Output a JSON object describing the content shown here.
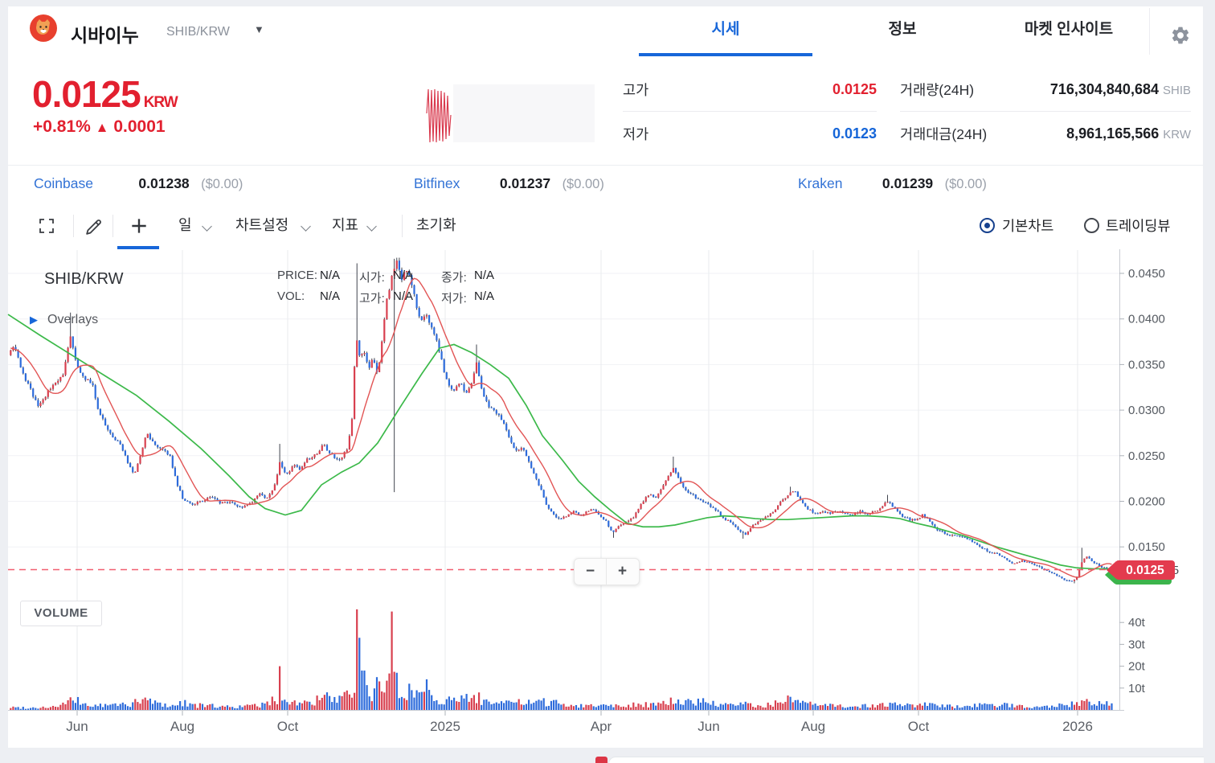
{
  "header": {
    "coin_name": "시바이누",
    "pair": "SHIB/KRW",
    "tabs": [
      {
        "label": "시세"
      },
      {
        "label": "정보"
      },
      {
        "label": "마켓 인사이트"
      }
    ]
  },
  "price_panel": {
    "price": "0.0125",
    "currency": "KRW",
    "change": "+0.81%",
    "arrow": "▲",
    "change_value": "0.0001",
    "high_label": "고가",
    "high": "0.0125",
    "low_label": "저가",
    "low": "0.0123",
    "volume_label": "거래량(24H)",
    "volume": "716,304,840,684",
    "volume_unit": "SHIB",
    "turnover_label": "거래대금(24H)",
    "turnover": "8,961,165,566",
    "turnover_unit": "KRW"
  },
  "exchanges": [
    {
      "name": "Coinbase",
      "price": "0.01238",
      "usd": "($0.00)"
    },
    {
      "name": "Bitfinex",
      "price": "0.01237",
      "usd": "($0.00)"
    },
    {
      "name": "Kraken",
      "price": "0.01239",
      "usd": "($0.00)"
    }
  ],
  "toolbar": {
    "interval": "일",
    "chart_settings": "차트설정",
    "indicators": "지표",
    "reset": "초기화",
    "radio_basic": "기본차트",
    "radio_tv": "트레이딩뷰"
  },
  "chart_labels": {
    "symbol": "SHIB/KRW",
    "overlays": "Overlays",
    "volume": "VOLUME",
    "price_label": "PRICE:",
    "price": "N/A",
    "open_label": "시가:",
    "open": "N/A",
    "close_label": "종가:",
    "close": "N/A",
    "vol_label": "VOL:",
    "vol": "N/A",
    "high_label": "고가:",
    "high": "N/A",
    "low_label": "저가:",
    "low": "N/A",
    "zoom_out": "−",
    "zoom_in": "+"
  },
  "chart_data": {
    "type": "candlestick",
    "pair": "SHIB/KRW",
    "interval": "일(daily)",
    "current_price": 0.0125,
    "price_tag": "0.0125",
    "axis_overlap_label": "0.01255",
    "y_ticks": [
      "0.0450",
      "0.0400",
      "0.0350",
      "0.0300",
      "0.0250",
      "0.0200",
      "0.0150"
    ],
    "y_tick_values": [
      0.045,
      0.04,
      0.035,
      0.03,
      0.025,
      0.02,
      0.015
    ],
    "volume_ticks": [
      {
        "label": "40t",
        "v": 40
      },
      {
        "label": "30t",
        "v": 30
      },
      {
        "label": "20t",
        "v": 20
      },
      {
        "label": "10t",
        "v": 10
      }
    ],
    "x_labels": [
      {
        "label": "Jun",
        "x": 96
      },
      {
        "label": "Aug",
        "x": 227
      },
      {
        "label": "Oct",
        "x": 358
      },
      {
        "label": "2025",
        "x": 554
      },
      {
        "label": "Apr",
        "x": 748
      },
      {
        "label": "Jun",
        "x": 882
      },
      {
        "label": "Aug",
        "x": 1012
      },
      {
        "label": "Oct",
        "x": 1143
      },
      {
        "label": "2026",
        "x": 1341
      }
    ],
    "colors": {
      "up": "#d8404f",
      "down": "#2d6bdb",
      "wick": "#2b2f3a",
      "ma_short": "#e25555",
      "ma_long": "#3cb94a",
      "dashed": "#f15f71",
      "tag": "#e33b4e",
      "tag_green": "#3cb44c",
      "grid_v": "#e9ebee",
      "grid_h": "#f1f2f5",
      "axis": "#c9cdd3",
      "tick": "#aeb3ba",
      "axis_text": "#555a61"
    },
    "price_path": [
      [
        -150,
        0.047
      ],
      [
        -100,
        0.0445
      ],
      [
        -60,
        0.0415
      ],
      [
        -25,
        0.038
      ],
      [
        10,
        0.036
      ],
      [
        18,
        0.0372
      ],
      [
        28,
        0.034
      ],
      [
        38,
        0.0322
      ],
      [
        48,
        0.0305
      ],
      [
        58,
        0.0318
      ],
      [
        68,
        0.033
      ],
      [
        78,
        0.0338
      ],
      [
        88,
        0.0382
      ],
      [
        95,
        0.035
      ],
      [
        105,
        0.0335
      ],
      [
        115,
        0.0328
      ],
      [
        122,
        0.03
      ],
      [
        130,
        0.0285
      ],
      [
        140,
        0.0272
      ],
      [
        150,
        0.0262
      ],
      [
        160,
        0.024
      ],
      [
        167,
        0.0228
      ],
      [
        175,
        0.0252
      ],
      [
        183,
        0.0275
      ],
      [
        192,
        0.0262
      ],
      [
        202,
        0.0258
      ],
      [
        212,
        0.0248
      ],
      [
        220,
        0.022
      ],
      [
        228,
        0.0202
      ],
      [
        238,
        0.0196
      ],
      [
        250,
        0.02
      ],
      [
        262,
        0.0205
      ],
      [
        275,
        0.0198
      ],
      [
        288,
        0.0198
      ],
      [
        300,
        0.0193
      ],
      [
        312,
        0.0198
      ],
      [
        322,
        0.0208
      ],
      [
        332,
        0.0202
      ],
      [
        342,
        0.0218
      ],
      [
        348,
        0.0242
      ],
      [
        356,
        0.0228
      ],
      [
        365,
        0.024
      ],
      [
        373,
        0.0234
      ],
      [
        382,
        0.0246
      ],
      [
        392,
        0.025
      ],
      [
        402,
        0.0262
      ],
      [
        412,
        0.0252
      ],
      [
        422,
        0.0244
      ],
      [
        432,
        0.0258
      ],
      [
        438,
        0.029
      ],
      [
        443,
        0.0385
      ],
      [
        448,
        0.0358
      ],
      [
        454,
        0.0365
      ],
      [
        459,
        0.0345
      ],
      [
        464,
        0.0358
      ],
      [
        470,
        0.034
      ],
      [
        476,
        0.038
      ],
      [
        482,
        0.0425
      ],
      [
        488,
        0.0448
      ],
      [
        494,
        0.0462
      ],
      [
        500,
        0.0445
      ],
      [
        505,
        0.0458
      ],
      [
        511,
        0.0442
      ],
      [
        517,
        0.042
      ],
      [
        523,
        0.0398
      ],
      [
        530,
        0.0405
      ],
      [
        537,
        0.0392
      ],
      [
        543,
        0.0378
      ],
      [
        550,
        0.0352
      ],
      [
        557,
        0.033
      ],
      [
        564,
        0.0322
      ],
      [
        572,
        0.033
      ],
      [
        580,
        0.0318
      ],
      [
        587,
        0.0328
      ],
      [
        593,
        0.0352
      ],
      [
        600,
        0.032
      ],
      [
        608,
        0.0305
      ],
      [
        617,
        0.0298
      ],
      [
        626,
        0.0288
      ],
      [
        634,
        0.0268
      ],
      [
        642,
        0.0255
      ],
      [
        650,
        0.0258
      ],
      [
        658,
        0.0244
      ],
      [
        666,
        0.0228
      ],
      [
        673,
        0.0213
      ],
      [
        680,
        0.0195
      ],
      [
        688,
        0.0186
      ],
      [
        697,
        0.018
      ],
      [
        706,
        0.0184
      ],
      [
        714,
        0.019
      ],
      [
        722,
        0.0184
      ],
      [
        730,
        0.0188
      ],
      [
        738,
        0.0192
      ],
      [
        746,
        0.0184
      ],
      [
        754,
        0.0178
      ],
      [
        762,
        0.0166
      ],
      [
        770,
        0.0172
      ],
      [
        779,
        0.0178
      ],
      [
        788,
        0.0182
      ],
      [
        797,
        0.0196
      ],
      [
        806,
        0.0208
      ],
      [
        815,
        0.0204
      ],
      [
        824,
        0.0214
      ],
      [
        832,
        0.0228
      ],
      [
        838,
        0.0238
      ],
      [
        845,
        0.0224
      ],
      [
        854,
        0.021
      ],
      [
        863,
        0.0206
      ],
      [
        872,
        0.02
      ],
      [
        881,
        0.0196
      ],
      [
        890,
        0.0191
      ],
      [
        900,
        0.0182
      ],
      [
        910,
        0.0176
      ],
      [
        920,
        0.0168
      ],
      [
        928,
        0.0163
      ],
      [
        936,
        0.0173
      ],
      [
        945,
        0.0179
      ],
      [
        954,
        0.0184
      ],
      [
        963,
        0.0189
      ],
      [
        972,
        0.02
      ],
      [
        981,
        0.0208
      ],
      [
        988,
        0.0212
      ],
      [
        996,
        0.0202
      ],
      [
        1005,
        0.0192
      ],
      [
        1014,
        0.0186
      ],
      [
        1023,
        0.019
      ],
      [
        1032,
        0.0186
      ],
      [
        1041,
        0.019
      ],
      [
        1050,
        0.0187
      ],
      [
        1060,
        0.0185
      ],
      [
        1070,
        0.0189
      ],
      [
        1080,
        0.0186
      ],
      [
        1090,
        0.0189
      ],
      [
        1100,
        0.0196
      ],
      [
        1106,
        0.0201
      ],
      [
        1114,
        0.0191
      ],
      [
        1123,
        0.0183
      ],
      [
        1132,
        0.018
      ],
      [
        1141,
        0.018
      ],
      [
        1148,
        0.0185
      ],
      [
        1156,
        0.018
      ],
      [
        1164,
        0.017
      ],
      [
        1173,
        0.0166
      ],
      [
        1182,
        0.0162
      ],
      [
        1191,
        0.0163
      ],
      [
        1200,
        0.016
      ],
      [
        1210,
        0.0156
      ],
      [
        1219,
        0.015
      ],
      [
        1228,
        0.0146
      ],
      [
        1237,
        0.0143
      ],
      [
        1246,
        0.014
      ],
      [
        1255,
        0.0134
      ],
      [
        1263,
        0.0131
      ],
      [
        1271,
        0.0135
      ],
      [
        1280,
        0.0133
      ],
      [
        1289,
        0.013
      ],
      [
        1298,
        0.0126
      ],
      [
        1307,
        0.0122
      ],
      [
        1316,
        0.0118
      ],
      [
        1325,
        0.0114
      ],
      [
        1334,
        0.0112
      ],
      [
        1341,
        0.0118
      ],
      [
        1347,
        0.0136
      ],
      [
        1353,
        0.014
      ],
      [
        1359,
        0.0134
      ],
      [
        1365,
        0.0131
      ],
      [
        1371,
        0.0128
      ],
      [
        1377,
        0.0126
      ],
      [
        1384,
        0.0125
      ]
    ],
    "wick_events": [
      [
        88,
        0.0407,
        null
      ],
      [
        348,
        0.0263,
        null
      ],
      [
        443,
        0.0461,
        null
      ],
      [
        490,
        0.0466,
        0.021
      ],
      [
        592,
        0.0372,
        null
      ],
      [
        764,
        null,
        0.016
      ],
      [
        838,
        0.0249,
        null
      ],
      [
        925,
        null,
        0.0159
      ],
      [
        985,
        0.0216,
        null
      ],
      [
        1104,
        0.0207,
        null
      ],
      [
        1337,
        null,
        0.011
      ],
      [
        1347,
        0.0149,
        null
      ]
    ],
    "volume_path": [
      [
        -150,
        1.2
      ],
      [
        10,
        1.2
      ],
      [
        40,
        1.0
      ],
      [
        70,
        1.5
      ],
      [
        93,
        4.5
      ],
      [
        110,
        2
      ],
      [
        130,
        2
      ],
      [
        150,
        2.5
      ],
      [
        165,
        3
      ],
      [
        185,
        4.5
      ],
      [
        200,
        2.5
      ],
      [
        215,
        2
      ],
      [
        230,
        3.5
      ],
      [
        245,
        2
      ],
      [
        260,
        2
      ],
      [
        280,
        1.5
      ],
      [
        300,
        1.5
      ],
      [
        320,
        2
      ],
      [
        335,
        3
      ],
      [
        347,
        6
      ],
      [
        360,
        4
      ],
      [
        375,
        3
      ],
      [
        390,
        3.5
      ],
      [
        405,
        6
      ],
      [
        420,
        4
      ],
      [
        432,
        6
      ],
      [
        443,
        10
      ],
      [
        455,
        8
      ],
      [
        465,
        8
      ],
      [
        478,
        9
      ],
      [
        489,
        12
      ],
      [
        500,
        8
      ],
      [
        512,
        9
      ],
      [
        525,
        9
      ],
      [
        538,
        6
      ],
      [
        550,
        5
      ],
      [
        565,
        4
      ],
      [
        578,
        5
      ],
      [
        590,
        6
      ],
      [
        602,
        4
      ],
      [
        615,
        3.5
      ],
      [
        630,
        3
      ],
      [
        645,
        3.5
      ],
      [
        660,
        3
      ],
      [
        675,
        3.5
      ],
      [
        690,
        3.5
      ],
      [
        705,
        2.5
      ],
      [
        720,
        2
      ],
      [
        735,
        2.2
      ],
      [
        750,
        2
      ],
      [
        765,
        2.5
      ],
      [
        780,
        2
      ],
      [
        795,
        2.8
      ],
      [
        810,
        2.4
      ],
      [
        825,
        2.6
      ],
      [
        838,
        4.5
      ],
      [
        852,
        3
      ],
      [
        867,
        4.5
      ],
      [
        880,
        3.5
      ],
      [
        895,
        2.2
      ],
      [
        910,
        2
      ],
      [
        925,
        2.8
      ],
      [
        940,
        2
      ],
      [
        955,
        2.2
      ],
      [
        970,
        3.5
      ],
      [
        985,
        5
      ],
      [
        1000,
        2.8
      ],
      [
        1015,
        2.2
      ],
      [
        1030,
        2
      ],
      [
        1045,
        2
      ],
      [
        1060,
        1.6
      ],
      [
        1075,
        1.8
      ],
      [
        1090,
        2
      ],
      [
        1105,
        2.8
      ],
      [
        1120,
        2
      ],
      [
        1135,
        2.2
      ],
      [
        1150,
        2.4
      ],
      [
        1165,
        2
      ],
      [
        1180,
        1.6
      ],
      [
        1195,
        1.8
      ],
      [
        1210,
        2.2
      ],
      [
        1225,
        2
      ],
      [
        1240,
        2
      ],
      [
        1255,
        2.2
      ],
      [
        1270,
        1.8
      ],
      [
        1285,
        1.6
      ],
      [
        1300,
        2
      ],
      [
        1315,
        2.2
      ],
      [
        1330,
        2.4
      ],
      [
        1342,
        3
      ],
      [
        1352,
        4.2
      ],
      [
        1362,
        3.2
      ],
      [
        1372,
        2.8
      ],
      [
        1384,
        2.5
      ]
    ],
    "volume_spikes": [
      [
        347,
        20,
        "up"
      ],
      [
        443,
        46,
        "up"
      ],
      [
        447,
        33,
        "down"
      ],
      [
        452,
        18,
        "down"
      ],
      [
        470,
        15,
        "down"
      ],
      [
        489,
        45,
        "up"
      ],
      [
        493,
        17,
        "down"
      ],
      [
        508,
        12,
        "down"
      ],
      [
        520,
        9,
        "down"
      ],
      [
        530,
        14,
        "down"
      ],
      [
        595,
        8,
        "up"
      ],
      [
        985,
        6,
        "down"
      ],
      [
        1352,
        5,
        "up"
      ]
    ],
    "ma_long_path": [
      [
        10,
        0.0405
      ],
      [
        50,
        0.0382
      ],
      [
        90,
        0.036
      ],
      [
        130,
        0.0338
      ],
      [
        170,
        0.0316
      ],
      [
        210,
        0.0288
      ],
      [
        250,
        0.0258
      ],
      [
        285,
        0.0228
      ],
      [
        310,
        0.0205
      ],
      [
        330,
        0.0192
      ],
      [
        355,
        0.0185
      ],
      [
        375,
        0.019
      ],
      [
        400,
        0.0218
      ],
      [
        425,
        0.0232
      ],
      [
        447,
        0.0242
      ],
      [
        470,
        0.0264
      ],
      [
        500,
        0.0306
      ],
      [
        525,
        0.034
      ],
      [
        547,
        0.0368
      ],
      [
        565,
        0.0372
      ],
      [
        587,
        0.0363
      ],
      [
        610,
        0.035
      ],
      [
        633,
        0.0335
      ],
      [
        655,
        0.0305
      ],
      [
        675,
        0.0272
      ],
      [
        700,
        0.0245
      ],
      [
        720,
        0.0222
      ],
      [
        740,
        0.0205
      ],
      [
        760,
        0.019
      ],
      [
        780,
        0.0176
      ],
      [
        800,
        0.0172
      ],
      [
        820,
        0.0172
      ],
      [
        840,
        0.0174
      ],
      [
        860,
        0.0178
      ],
      [
        880,
        0.0182
      ],
      [
        900,
        0.0184
      ],
      [
        920,
        0.0183
      ],
      [
        940,
        0.0181
      ],
      [
        960,
        0.018
      ],
      [
        980,
        0.018
      ],
      [
        1000,
        0.0181
      ],
      [
        1020,
        0.0182
      ],
      [
        1040,
        0.0183
      ],
      [
        1060,
        0.0184
      ],
      [
        1080,
        0.0184
      ],
      [
        1100,
        0.0183
      ],
      [
        1120,
        0.0181
      ],
      [
        1140,
        0.0176
      ],
      [
        1160,
        0.0172
      ],
      [
        1180,
        0.0167
      ],
      [
        1200,
        0.0162
      ],
      [
        1220,
        0.0156
      ],
      [
        1240,
        0.015
      ],
      [
        1260,
        0.0145
      ],
      [
        1280,
        0.014
      ],
      [
        1300,
        0.0135
      ],
      [
        1320,
        0.013
      ],
      [
        1340,
        0.0127
      ],
      [
        1360,
        0.0126
      ],
      [
        1375,
        0.0126
      ],
      [
        1390,
        0.0126
      ]
    ],
    "ma_short_window": 12,
    "mini_chart": {
      "color": "#d93a4e",
      "points": [
        [
          3,
          38
        ],
        [
          5,
          8
        ],
        [
          7,
          74
        ],
        [
          9,
          9
        ],
        [
          11,
          73
        ],
        [
          13,
          8
        ],
        [
          15,
          74
        ],
        [
          17,
          10
        ],
        [
          19,
          72
        ],
        [
          21,
          10
        ],
        [
          23,
          73
        ],
        [
          25,
          12
        ],
        [
          27,
          70
        ],
        [
          29,
          16
        ],
        [
          31,
          66
        ],
        [
          33,
          40
        ]
      ]
    }
  }
}
